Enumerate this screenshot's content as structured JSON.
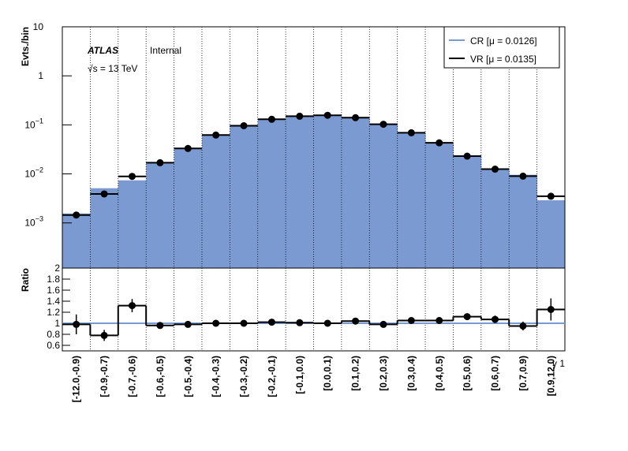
{
  "chart_data": {
    "type": "histogram",
    "title": "ATLAS",
    "subtitle": "Internal",
    "annotation": "√s = 13 TeV",
    "ylabel": "Evts./bin",
    "xlabel": "γ 1",
    "log_y": true,
    "ylim": [
      0.00012,
      10
    ],
    "yticks": [
      {
        "value": 0.001,
        "label": "10",
        "exponent": "−3"
      },
      {
        "value": 0.01,
        "label": "10",
        "exponent": "−2"
      },
      {
        "value": 0.1,
        "label": "10",
        "exponent": "−1"
      },
      1,
      10
    ],
    "categories": [
      "[-12.0,-0.9)",
      "[-0.9,-0.7)",
      "[-0.7,-0.6)",
      "[-0.6,-0.5)",
      "[-0.5,-0.4)",
      "[-0.4,-0.3)",
      "[-0.3,-0.2)",
      "[-0.2,-0.1)",
      "[-0.1,0.0)",
      "[0.0,0.1)",
      "[0.1,0.2)",
      "[0.2,0.3)",
      "[0.3,0.4)",
      "[0.4,0.5)",
      "[0.5,0.6)",
      "[0.6,0.7)",
      "[0.7,0.9)",
      "[0.9,12.0)"
    ],
    "grid": true,
    "legend": "top-right",
    "series": [
      {
        "name": "CR [μ = 0.0126]",
        "color": "#7b9ad2",
        "values": [
          0.00156,
          0.0051,
          0.0074,
          0.0175,
          0.034,
          0.064,
          0.1,
          0.133,
          0.155,
          0.16,
          0.145,
          0.107,
          0.071,
          0.042,
          0.0225,
          0.013,
          0.0096,
          0.0029
        ]
      },
      {
        "name": "VR [μ = 0.0135]",
        "color": "#000000",
        "values": [
          0.00145,
          0.0039,
          0.0089,
          0.0169,
          0.033,
          0.062,
          0.096,
          0.13,
          0.15,
          0.157,
          0.14,
          0.103,
          0.069,
          0.043,
          0.023,
          0.0125,
          0.009,
          0.0035
        ]
      }
    ],
    "ratio": {
      "ylabel": "Ratio",
      "ylim": [
        0.5,
        2
      ],
      "yticks": [
        0.6,
        0.8,
        1,
        1.2,
        1.4,
        1.6,
        1.8,
        2
      ],
      "reference": 1,
      "reference_color": "#7b9ad2",
      "values": [
        0.98,
        0.78,
        1.32,
        0.96,
        0.98,
        1.0,
        1.0,
        1.02,
        1.01,
        1.0,
        1.04,
        0.98,
        1.05,
        1.05,
        1.12,
        1.07,
        0.95,
        1.25
      ],
      "errors": [
        0.18,
        0.1,
        0.12,
        0.05,
        0.04,
        0.03,
        0.03,
        0.03,
        0.03,
        0.03,
        0.03,
        0.03,
        0.04,
        0.04,
        0.05,
        0.07,
        0.08,
        0.2
      ]
    }
  }
}
